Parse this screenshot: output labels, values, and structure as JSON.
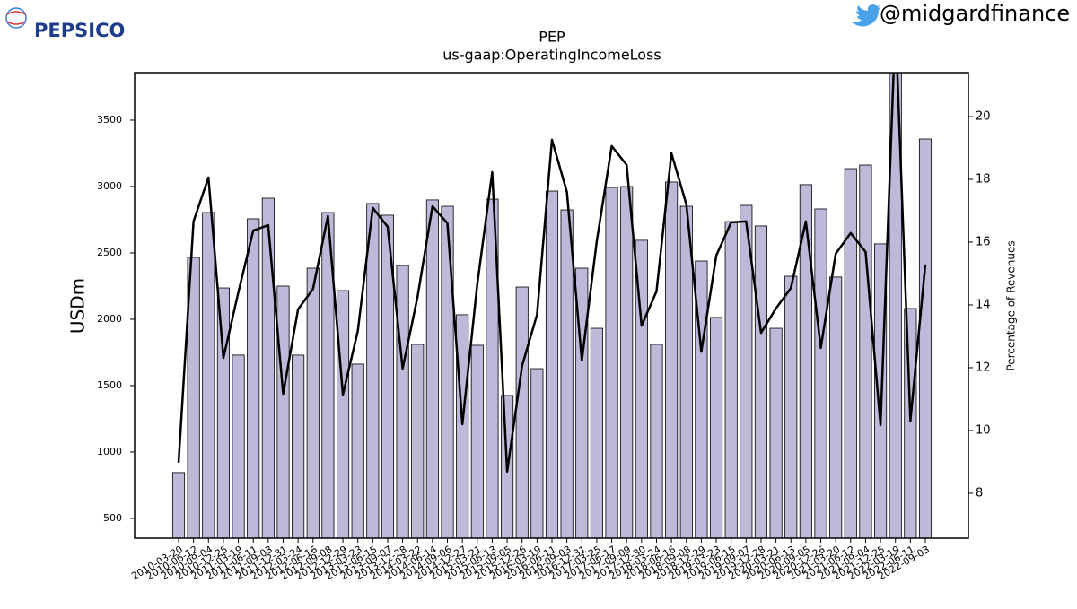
{
  "logo_text": "PEPSICO",
  "watermark": "@midgardfinance",
  "chart_data": {
    "type": "bar_line",
    "title": "PEP",
    "subtitle": "us-gaap:OperatingIncomeLoss",
    "y_label": "USDm",
    "y2_label": "Percentage of Revenues",
    "categories": [
      "2010-03-20",
      "2010-06-12",
      "2010-09-04",
      "2010-12-25",
      "2011-03-19",
      "2011-06-11",
      "2011-09-03",
      "2011-12-31",
      "2012-03-24",
      "2012-06-16",
      "2012-09-08",
      "2012-12-29",
      "2013-03-23",
      "2013-06-15",
      "2013-09-07",
      "2013-12-28",
      "2014-03-22",
      "2014-06-14",
      "2014-09-06",
      "2014-12-27",
      "2015-03-21",
      "2015-06-13",
      "2015-09-05",
      "2015-12-26",
      "2016-03-19",
      "2016-06-11",
      "2016-09-03",
      "2016-12-31",
      "2017-03-25",
      "2017-06-17",
      "2017-09-09",
      "2017-12-30",
      "2018-03-24",
      "2018-06-16",
      "2018-09-08",
      "2018-12-29",
      "2019-03-23",
      "2019-06-15",
      "2019-09-07",
      "2019-12-28",
      "2020-03-21",
      "2020-06-13",
      "2020-09-05",
      "2020-12-26",
      "2021-03-20",
      "2021-06-12",
      "2021-09-04",
      "2021-12-25",
      "2022-03-19",
      "2022-06-11",
      "2022-09-03"
    ],
    "series": [
      {
        "kind": "bar",
        "color": "#bcb9d9",
        "edgecolor": "#000000",
        "values": [
          845,
          2466,
          2804,
          2236,
          1730,
          2757,
          2912,
          2250,
          1730,
          2385,
          2804,
          2216,
          1662,
          2872,
          2784,
          2405,
          1811,
          2899,
          2851,
          2034,
          1804,
          2905,
          1426,
          2243,
          1628,
          2966,
          2824,
          2385,
          1932,
          2993,
          3000,
          2595,
          1811,
          3034,
          2851,
          2439,
          2014,
          2736,
          2858,
          2703,
          1932,
          2324,
          3014,
          2831,
          2318,
          3135,
          3162,
          2568,
          4000,
          2081,
          3358
        ]
      },
      {
        "kind": "line",
        "axis": "y2",
        "color": "#000000",
        "values": [
          8.97,
          16.66,
          18.06,
          12.31,
          14.4,
          16.37,
          16.54,
          11.17,
          13.86,
          14.51,
          16.83,
          11.14,
          13.17,
          17.09,
          16.49,
          11.97,
          14.26,
          17.14,
          16.6,
          10.2,
          14.66,
          18.23,
          8.69,
          12.06,
          13.69,
          19.26,
          17.6,
          12.23,
          16.03,
          19.06,
          18.46,
          13.34,
          14.43,
          18.83,
          17.2,
          12.51,
          15.57,
          16.63,
          16.66,
          13.11,
          13.89,
          14.54,
          16.66,
          12.63,
          15.63,
          16.29,
          15.69,
          10.17,
          23,
          10.31,
          15.29
        ]
      }
    ],
    "ylim": [
      351,
      3858
    ],
    "yticks": [
      500,
      1000,
      1500,
      2000,
      2500,
      3000,
      3500
    ],
    "y2lim": [
      6.57,
      21.4
    ],
    "y2ticks": [
      8,
      10,
      12,
      14,
      16,
      18,
      20
    ]
  }
}
